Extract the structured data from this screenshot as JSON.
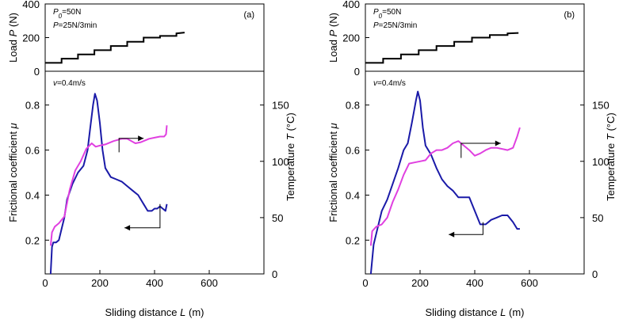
{
  "chart_data": [
    {
      "type": "line",
      "panel_label": "(a)",
      "load": {
        "title_lines": [
          "P0=50N",
          "P=25N/3min"
        ],
        "ylabel": "Load P (N)",
        "yticks": [
          "0",
          "200",
          "400"
        ],
        "ylim": [
          0,
          400
        ],
        "xlim": [
          0,
          800
        ],
        "series": [
          {
            "name": "Load P",
            "color": "#000000",
            "x": [
              0,
              60,
              60,
              120,
              120,
              180,
              180,
              240,
              240,
              300,
              300,
              360,
              360,
              420,
              420,
              480,
              480,
              510
            ],
            "y": [
              50,
              50,
              75,
              75,
              100,
              100,
              125,
              125,
              150,
              150,
              175,
              175,
              200,
              200,
              210,
              210,
              225,
              230
            ]
          }
        ]
      },
      "main": {
        "speed_label": "v=0.4m/s",
        "xlabel": "Sliding distance L (m)",
        "ylabel_left": "Frictional coefficient μ",
        "ylabel_right": "Temperature T (°C)",
        "xticks": [
          "0",
          "200",
          "400",
          "600"
        ],
        "xlim": [
          0,
          800
        ],
        "yticks_left": [
          "0.2",
          "0.4",
          "0.6",
          "0.8"
        ],
        "ylim_left": [
          0.05,
          0.95
        ],
        "yticks_right": [
          "0",
          "50",
          "100",
          "150"
        ],
        "ylim_right": [
          0,
          180
        ],
        "series": [
          {
            "name": "Frictional coefficient μ",
            "axis": "left",
            "color": "#1a1aa8",
            "x": [
              20,
              25,
              30,
              40,
              50,
              60,
              70,
              80,
              100,
              120,
              140,
              155,
              165,
              175,
              182,
              190,
              200,
              210,
              220,
              240,
              260,
              280,
              300,
              320,
              340,
              360,
              375,
              390,
              400,
              410,
              420,
              430,
              440,
              445
            ],
            "y": [
              0.05,
              0.17,
              0.19,
              0.19,
              0.2,
              0.25,
              0.3,
              0.38,
              0.45,
              0.5,
              0.53,
              0.6,
              0.7,
              0.8,
              0.85,
              0.82,
              0.72,
              0.6,
              0.52,
              0.48,
              0.47,
              0.46,
              0.44,
              0.42,
              0.4,
              0.36,
              0.33,
              0.33,
              0.34,
              0.34,
              0.35,
              0.34,
              0.33,
              0.36
            ]
          },
          {
            "name": "Temperature T",
            "axis": "right",
            "color": "#e040e0",
            "x": [
              20,
              25,
              35,
              50,
              70,
              90,
              110,
              130,
              150,
              170,
              185,
              200,
              220,
              250,
              280,
              300,
              330,
              350,
              380,
              400,
              420,
              435,
              442,
              445
            ],
            "y": [
              25,
              37,
              42,
              45,
              51,
              75,
              92,
              100,
              111,
              116,
              113,
              114,
              115,
              118,
              120,
              120,
              116,
              117,
              120,
              121,
              122,
              122,
              124,
              132
            ]
          }
        ],
        "annotations": [
          {
            "target": "right",
            "from": [
              270,
              0.59
            ],
            "to": [
              360,
              0.652
            ]
          },
          {
            "target": "left",
            "from": [
              420,
              0.36
            ],
            "to": [
              290,
              0.255
            ]
          }
        ]
      }
    },
    {
      "type": "line",
      "panel_label": "(b)",
      "load": {
        "title_lines": [
          "P0=50N",
          "P=25N/3min"
        ],
        "ylabel": "Load P (N)",
        "yticks": [
          "0",
          "200",
          "400"
        ],
        "ylim": [
          0,
          400
        ],
        "xlim": [
          0,
          800
        ],
        "series": [
          {
            "name": "Load P",
            "color": "#000000",
            "x": [
              0,
              65,
              65,
              130,
              130,
              195,
              195,
              260,
              260,
              325,
              325,
              390,
              390,
              455,
              455,
              520,
              520,
              560
            ],
            "y": [
              50,
              50,
              75,
              75,
              100,
              100,
              125,
              125,
              150,
              150,
              175,
              175,
              200,
              200,
              215,
              215,
              225,
              228
            ]
          }
        ]
      },
      "main": {
        "speed_label": "v=0.4m/s",
        "xlabel": "Sliding distance L (m)",
        "ylabel_left": "Frictional coefficient μ",
        "ylabel_right": "Temperature T (°C)",
        "xticks": [
          "0",
          "200",
          "400",
          "600"
        ],
        "xlim": [
          0,
          800
        ],
        "yticks_left": [
          "0.2",
          "0.4",
          "0.6",
          "0.8"
        ],
        "ylim_left": [
          0.05,
          0.95
        ],
        "yticks_right": [
          "0",
          "50",
          "100",
          "150"
        ],
        "ylim_right": [
          0,
          180
        ],
        "series": [
          {
            "name": "Frictional coefficient μ",
            "axis": "left",
            "color": "#1a1aa8",
            "x": [
              20,
              30,
              40,
              60,
              80,
              100,
              120,
              140,
              155,
              170,
              185,
              192,
              200,
              210,
              220,
              240,
              260,
              280,
              300,
              320,
              340,
              360,
              380,
              400,
              420,
              440,
              460,
              480,
              500,
              520,
              540,
              555,
              565
            ],
            "y": [
              0.05,
              0.18,
              0.23,
              0.33,
              0.38,
              0.45,
              0.52,
              0.6,
              0.63,
              0.72,
              0.82,
              0.86,
              0.82,
              0.7,
              0.62,
              0.58,
              0.52,
              0.47,
              0.44,
              0.42,
              0.39,
              0.39,
              0.39,
              0.33,
              0.27,
              0.27,
              0.29,
              0.3,
              0.31,
              0.31,
              0.28,
              0.25,
              0.25
            ]
          },
          {
            "name": "Temperature T",
            "axis": "right",
            "color": "#e040e0",
            "x": [
              20,
              25,
              40,
              60,
              80,
              100,
              120,
              140,
              160,
              180,
              200,
              220,
              240,
              260,
              280,
              300,
              320,
              340,
              360,
              380,
              400,
              420,
              440,
              460,
              480,
              500,
              520,
              540,
              555,
              565
            ],
            "y": [
              25,
              38,
              42,
              44,
              50,
              64,
              75,
              88,
              98,
              99,
              100,
              101,
              107,
              110,
              110,
              112,
              116,
              118,
              114,
              110,
              105,
              107,
              110,
              112,
              112,
              111,
              110,
              112,
              122,
              130
            ]
          }
        ],
        "annotations": [
          {
            "target": "right",
            "from": [
              350,
              0.565
            ],
            "to": [
              495,
              0.63
            ]
          },
          {
            "target": "left",
            "from": [
              430,
              0.28
            ],
            "to": [
              305,
              0.225
            ]
          }
        ]
      }
    }
  ]
}
